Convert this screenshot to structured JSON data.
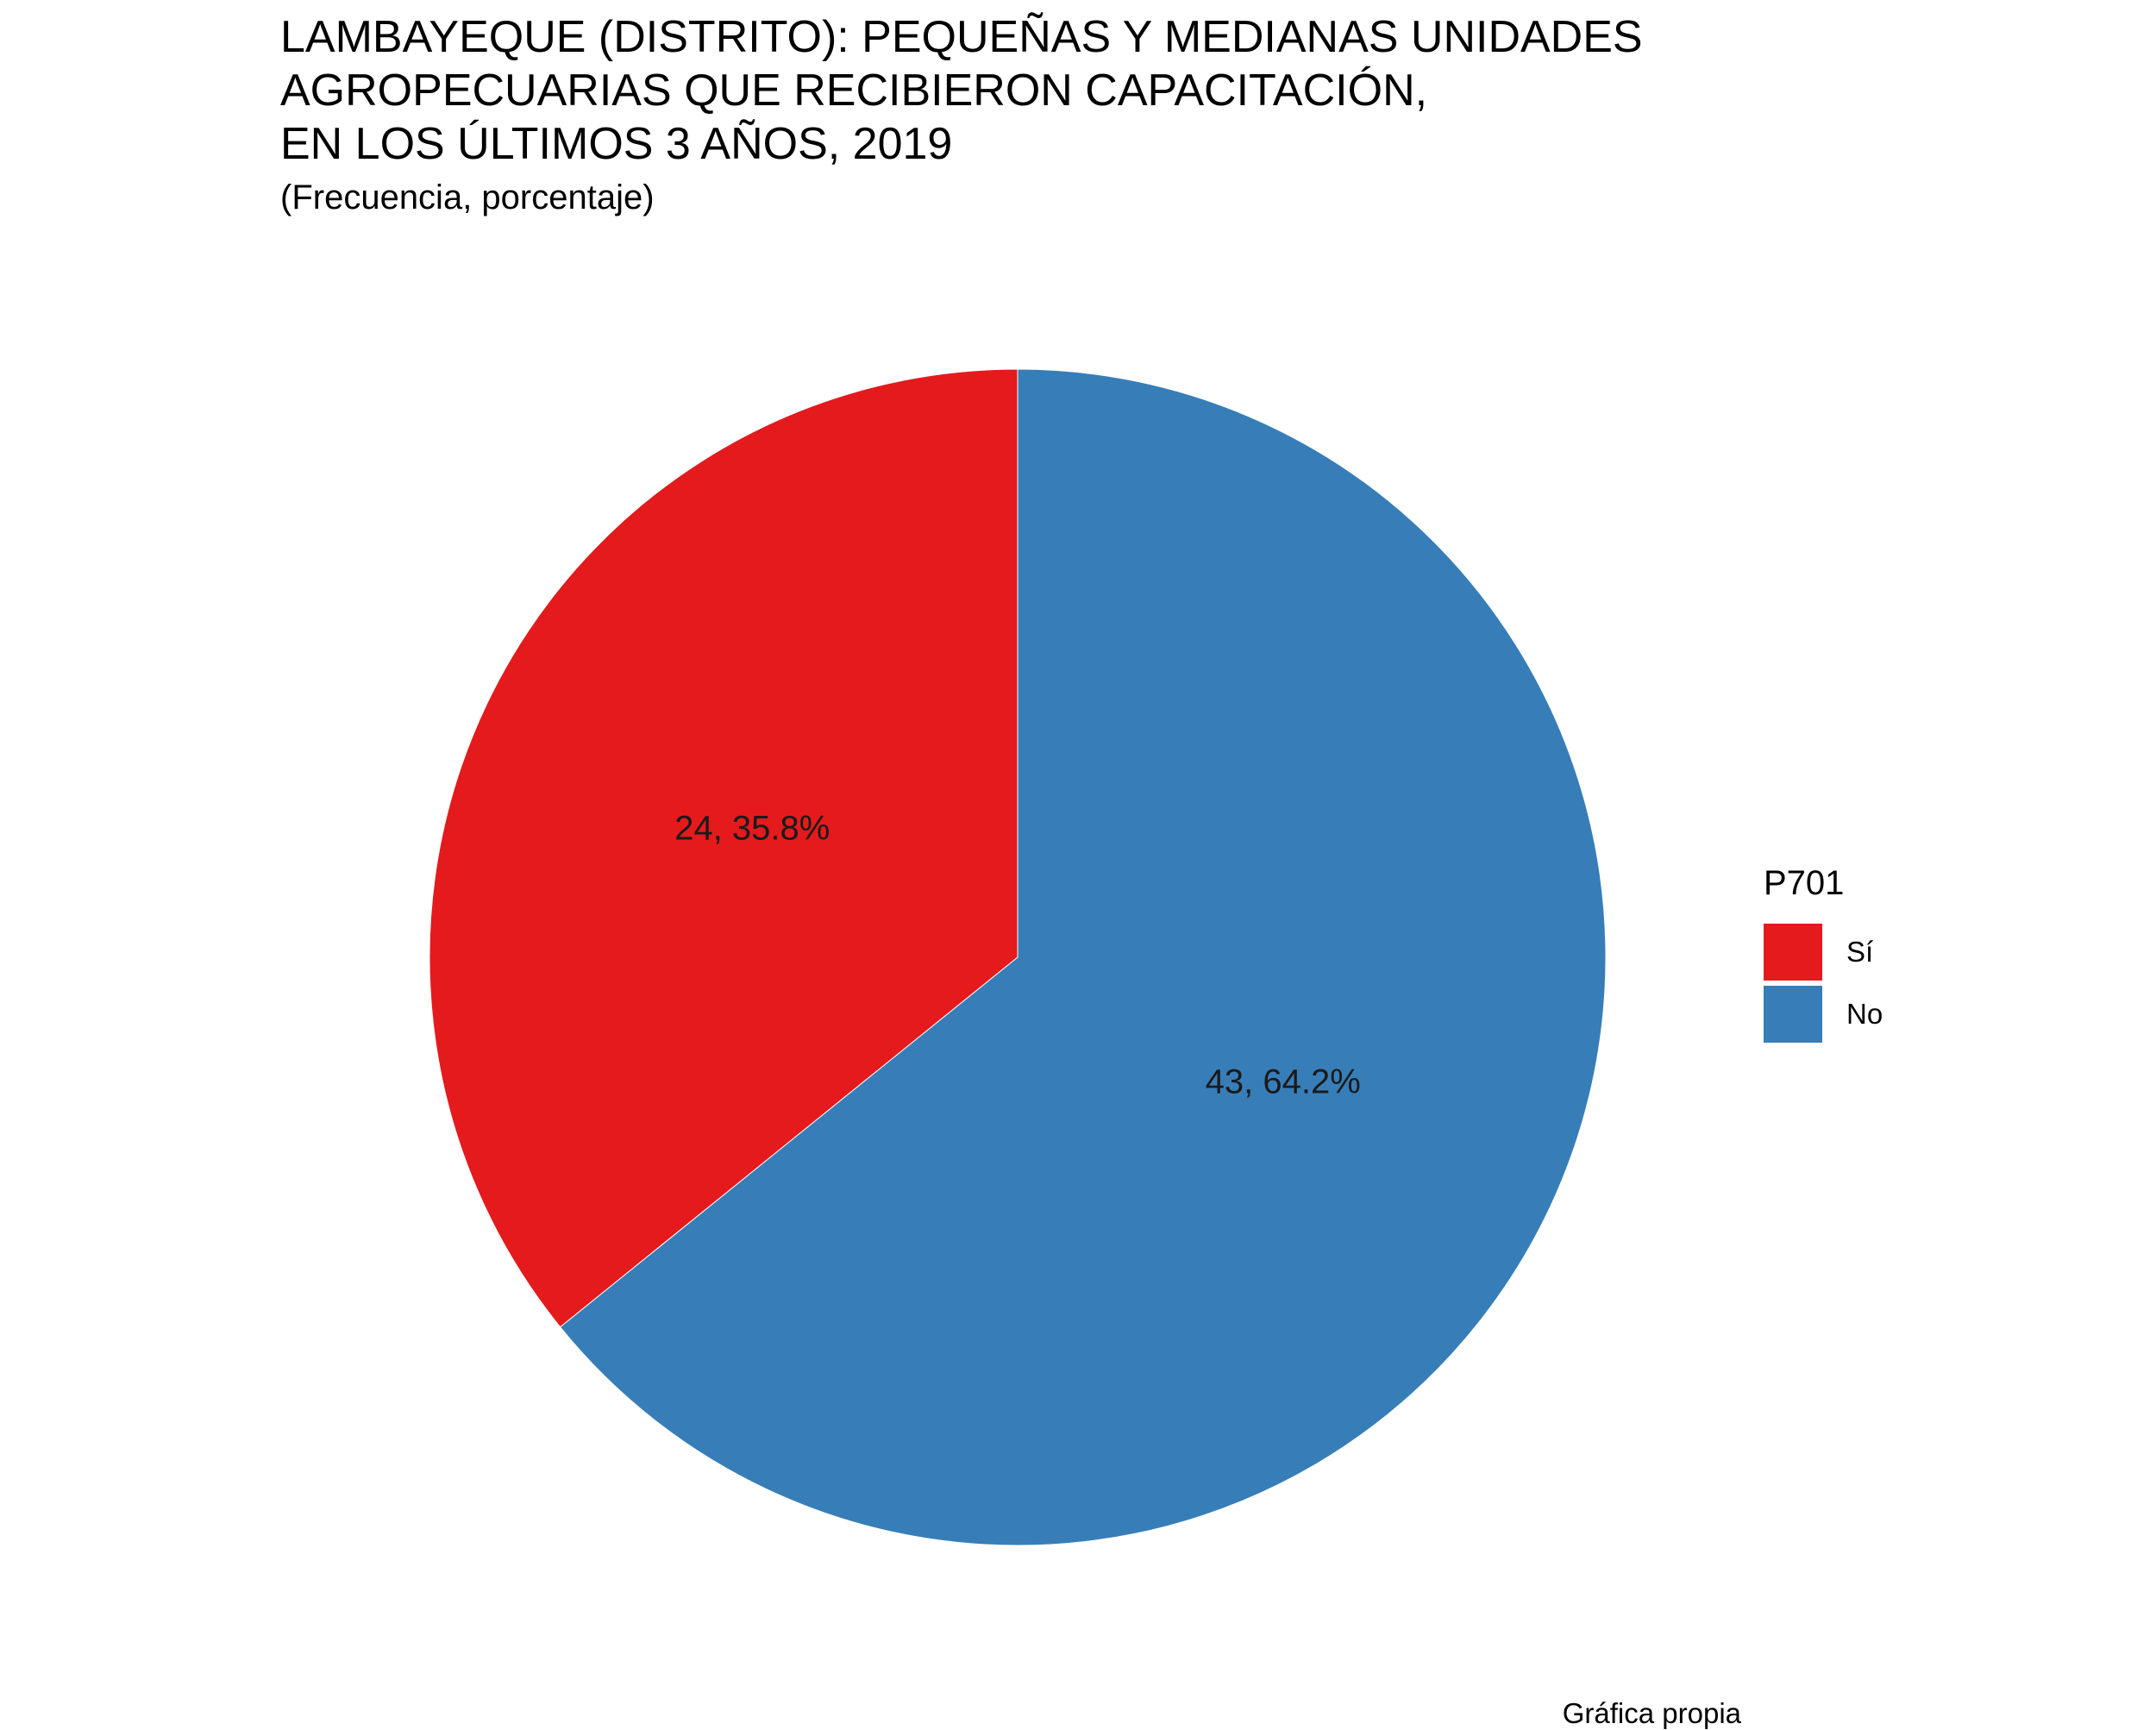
{
  "chart_data": {
    "type": "pie",
    "title_lines": [
      "LAMBAYEQUE (DISTRITO): PEQUEÑAS Y MEDIANAS UNIDADES",
      "AGROPECUARIAS QUE RECIBIERON CAPACITACIÓN,",
      "EN LOS ÚLTIMOS 3 AÑOS, 2019"
    ],
    "subtitle": "(Frecuencia, porcentaje)",
    "legend_title": "P701",
    "legend_position": "right",
    "caption": "Gráfica propia",
    "slices": [
      {
        "category": "Sí",
        "value": 24,
        "percent": 35.8,
        "label": "24, 35.8%",
        "color": "#E41A1C"
      },
      {
        "category": "No",
        "value": 43,
        "percent": 64.2,
        "label": "43, 64.2%",
        "color": "#377EB8"
      }
    ]
  }
}
